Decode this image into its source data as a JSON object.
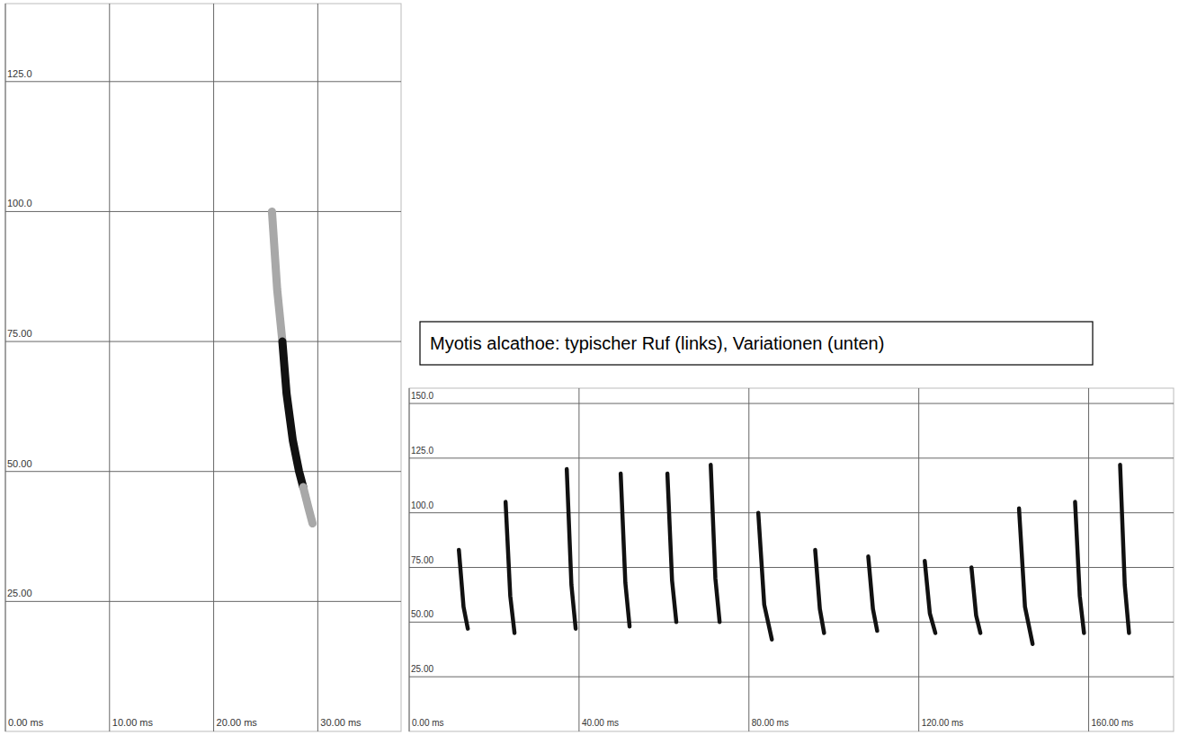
{
  "chart_data": [
    {
      "type": "line",
      "xlim": [
        0,
        38
      ],
      "ylim": [
        0,
        140
      ],
      "xticks": [
        {
          "value": 0,
          "label": "0.00 ms"
        },
        {
          "value": 10,
          "label": "10.00 ms"
        },
        {
          "value": 20,
          "label": "20.00 ms"
        },
        {
          "value": 30,
          "label": "30.00 ms"
        }
      ],
      "yticks": [
        {
          "value": 25,
          "label": "25.00"
        },
        {
          "value": 50,
          "label": "50.00"
        },
        {
          "value": 75,
          "label": "75.00"
        },
        {
          "value": 100,
          "label": "100.0"
        },
        {
          "value": 125,
          "label": "125.0"
        }
      ],
      "grid": true,
      "series": [
        {
          "color": "#a8a8a8",
          "x": [
            25.6,
            26.1,
            26.6
          ],
          "values": [
            100,
            85,
            75
          ]
        },
        {
          "color": "#111111",
          "x": [
            26.6,
            27.0,
            27.6,
            28.2,
            28.6
          ],
          "values": [
            75,
            65,
            56,
            50,
            47
          ]
        },
        {
          "color": "#a8a8a8",
          "x": [
            28.6,
            29.1,
            29.5
          ],
          "values": [
            47,
            43,
            40
          ]
        }
      ]
    },
    {
      "type": "line",
      "annotation": "Myotis alcathoe: typischer Ruf (links), Variationen (unten)",
      "xlim": [
        0,
        180
      ],
      "ylim": [
        0,
        157
      ],
      "xticks": [
        {
          "value": 0,
          "label": "0.00 ms"
        },
        {
          "value": 40,
          "label": "40.00 ms"
        },
        {
          "value": 80,
          "label": "80.00 ms"
        },
        {
          "value": 120,
          "label": "120.00 ms"
        },
        {
          "value": 160,
          "label": "160.00 ms"
        }
      ],
      "yticks": [
        {
          "value": 25,
          "label": "25.00"
        },
        {
          "value": 50,
          "label": "50.00"
        },
        {
          "value": 75,
          "label": "75.00"
        },
        {
          "value": 100,
          "label": "100.0"
        },
        {
          "value": 125,
          "label": "125.0"
        },
        {
          "value": 150,
          "label": "150.0"
        }
      ],
      "grid": true,
      "series": [
        {
          "color": "#111111",
          "x": [
            11.7,
            12.8,
            13.8
          ],
          "values": [
            83,
            57,
            47
          ]
        },
        {
          "color": "#111111",
          "x": [
            22.7,
            23.8,
            24.8
          ],
          "values": [
            105,
            62,
            45
          ]
        },
        {
          "color": "#111111",
          "x": [
            37.1,
            38.2,
            39.2
          ],
          "values": [
            120,
            67,
            47
          ]
        },
        {
          "color": "#111111",
          "x": [
            49.8,
            50.9,
            51.9
          ],
          "values": [
            118,
            68,
            48
          ]
        },
        {
          "color": "#111111",
          "x": [
            60.8,
            61.9,
            62.9
          ],
          "values": [
            118,
            69,
            50
          ]
        },
        {
          "color": "#111111",
          "x": [
            71.0,
            72.1,
            73.1
          ],
          "values": [
            122,
            70,
            50
          ]
        },
        {
          "color": "#111111",
          "x": [
            82.2,
            83.6,
            85.4
          ],
          "values": [
            100,
            58,
            42
          ]
        },
        {
          "color": "#111111",
          "x": [
            95.6,
            96.7,
            97.7
          ],
          "values": [
            83,
            56,
            45
          ]
        },
        {
          "color": "#111111",
          "x": [
            108.1,
            109.2,
            110.2
          ],
          "values": [
            80,
            56,
            46
          ]
        },
        {
          "color": "#111111",
          "x": [
            121.4,
            122.6,
            123.9
          ],
          "values": [
            78,
            54,
            45
          ]
        },
        {
          "color": "#111111",
          "x": [
            132.4,
            133.5,
            134.5
          ],
          "values": [
            75,
            53,
            45
          ]
        },
        {
          "color": "#111111",
          "x": [
            143.6,
            145.0,
            146.8
          ],
          "values": [
            102,
            57,
            40
          ]
        },
        {
          "color": "#111111",
          "x": [
            156.8,
            157.9,
            158.9
          ],
          "values": [
            105,
            62,
            45
          ]
        },
        {
          "color": "#111111",
          "x": [
            167.4,
            168.5,
            169.5
          ],
          "values": [
            122,
            67,
            45
          ]
        }
      ]
    }
  ]
}
